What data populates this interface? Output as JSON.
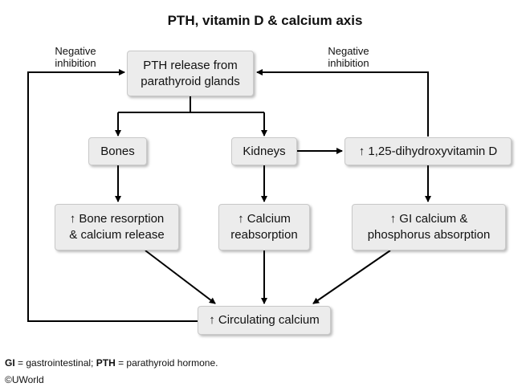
{
  "title": "PTH, vitamin D & calcium axis",
  "labels": {
    "left_feedback_line1": "Negative",
    "left_feedback_line2": "inhibition",
    "right_feedback_line1": "Negative",
    "right_feedback_line2": "inhibition"
  },
  "nodes": {
    "pth_release_line1": "PTH release from",
    "pth_release_line2": "parathyroid glands",
    "bones": "Bones",
    "kidneys": "Kidneys",
    "vitamin_d": "↑ 1,25-dihydroxyvitamin D",
    "bone_resorption_line1": "↑ Bone resorption",
    "bone_resorption_line2": "& calcium release",
    "calcium_reabsorption_line1": "↑ Calcium",
    "calcium_reabsorption_line2": "reabsorption",
    "gi_absorption_line1": "↑ GI calcium &",
    "gi_absorption_line2": "phosphorus absorption",
    "circulating_calcium": "↑ Circulating calcium"
  },
  "footnote": {
    "gi_abbr": "GI",
    "gi_def": " = gastrointestinal; ",
    "pth_abbr": "PTH",
    "pth_def": " = parathyroid hormone."
  },
  "copyright": "©UWorld"
}
